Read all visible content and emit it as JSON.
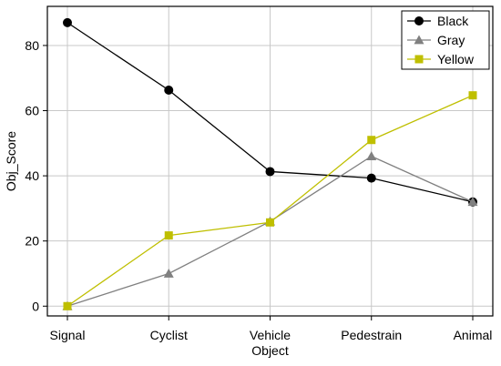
{
  "chart_data": {
    "type": "line",
    "title": "",
    "xlabel": "Object",
    "ylabel": "Obj_Score",
    "categories": [
      "Signal",
      "Cyclist",
      "Vehicle",
      "Pedestrain",
      "Animal"
    ],
    "ylim": [
      -3,
      92
    ],
    "yticks": [
      0,
      20,
      40,
      60,
      80
    ],
    "grid": true,
    "legend_position": "top-right",
    "series": [
      {
        "name": "Black",
        "color": "#000000",
        "marker": "circle",
        "values": [
          87,
          66.3,
          41.3,
          39.3,
          32
        ]
      },
      {
        "name": "Gray",
        "color": "#808080",
        "marker": "triangle",
        "values": [
          0,
          10,
          26,
          46,
          32
        ]
      },
      {
        "name": "Yellow",
        "color": "#bfbf00",
        "marker": "square",
        "values": [
          0,
          21.7,
          25.7,
          51,
          64.7
        ]
      }
    ]
  }
}
